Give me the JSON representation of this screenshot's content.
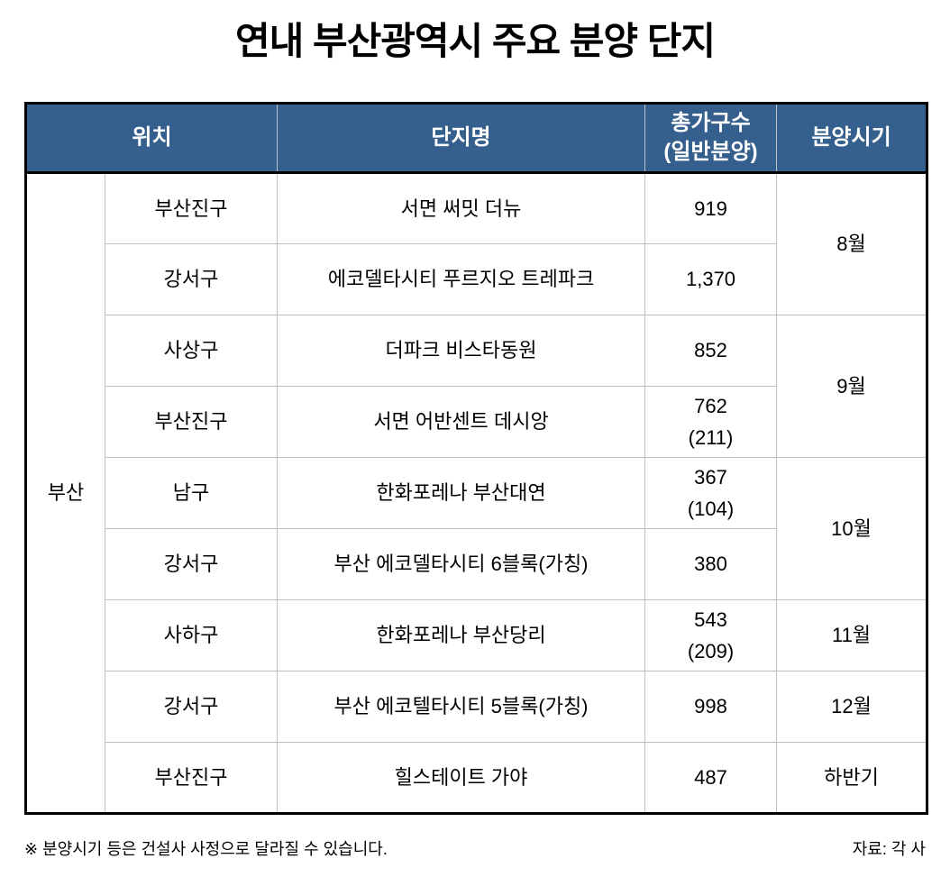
{
  "title": "연내 부산광역시 주요 분양 단지",
  "colors": {
    "header_bg": "#35608e",
    "header_text": "#ffffff",
    "grid_line": "#bfbfbf",
    "outer_border": "#000000",
    "body_text": "#000000"
  },
  "table": {
    "header": {
      "location": "위치",
      "complex_name": "단지명",
      "households_line1": "총가구수",
      "households_line2": "(일반분양)",
      "sale_period": "분양시기"
    },
    "region_label": "부산",
    "rows": [
      {
        "district": "부산진구",
        "complex": "서면 써밋 더뉴",
        "households": "919",
        "period": "8월"
      },
      {
        "district": "강서구",
        "complex": "에코델타시티 푸르지오 트레파크",
        "households": "1,370"
      },
      {
        "district": "사상구",
        "complex": "더파크 비스타동원",
        "households": "852",
        "period": "9월"
      },
      {
        "district": "부산진구",
        "complex": "서면 어반센트 데시앙",
        "households": "762",
        "households_general": "(211)"
      },
      {
        "district": "남구",
        "complex": "한화포레나 부산대연",
        "households": "367",
        "households_general": "(104)",
        "period": "10월"
      },
      {
        "district": "강서구",
        "complex": "부산 에코델타시티 6블록(가칭)",
        "households": "380"
      },
      {
        "district": "사하구",
        "complex": "한화포레나 부산당리",
        "households": "543",
        "households_general": "(209)",
        "period": "11월"
      },
      {
        "district": "강서구",
        "complex": "부산 에코텔타시티 5블록(가칭)",
        "households": "998",
        "period": "12월"
      },
      {
        "district": "부산진구",
        "complex": "힐스테이트 가야",
        "households": "487",
        "period": "하반기"
      }
    ]
  },
  "footnote": "※ 분양시기 등은 건설사 사정으로 달라질 수 있습니다.",
  "source": "자료: 각 사"
}
